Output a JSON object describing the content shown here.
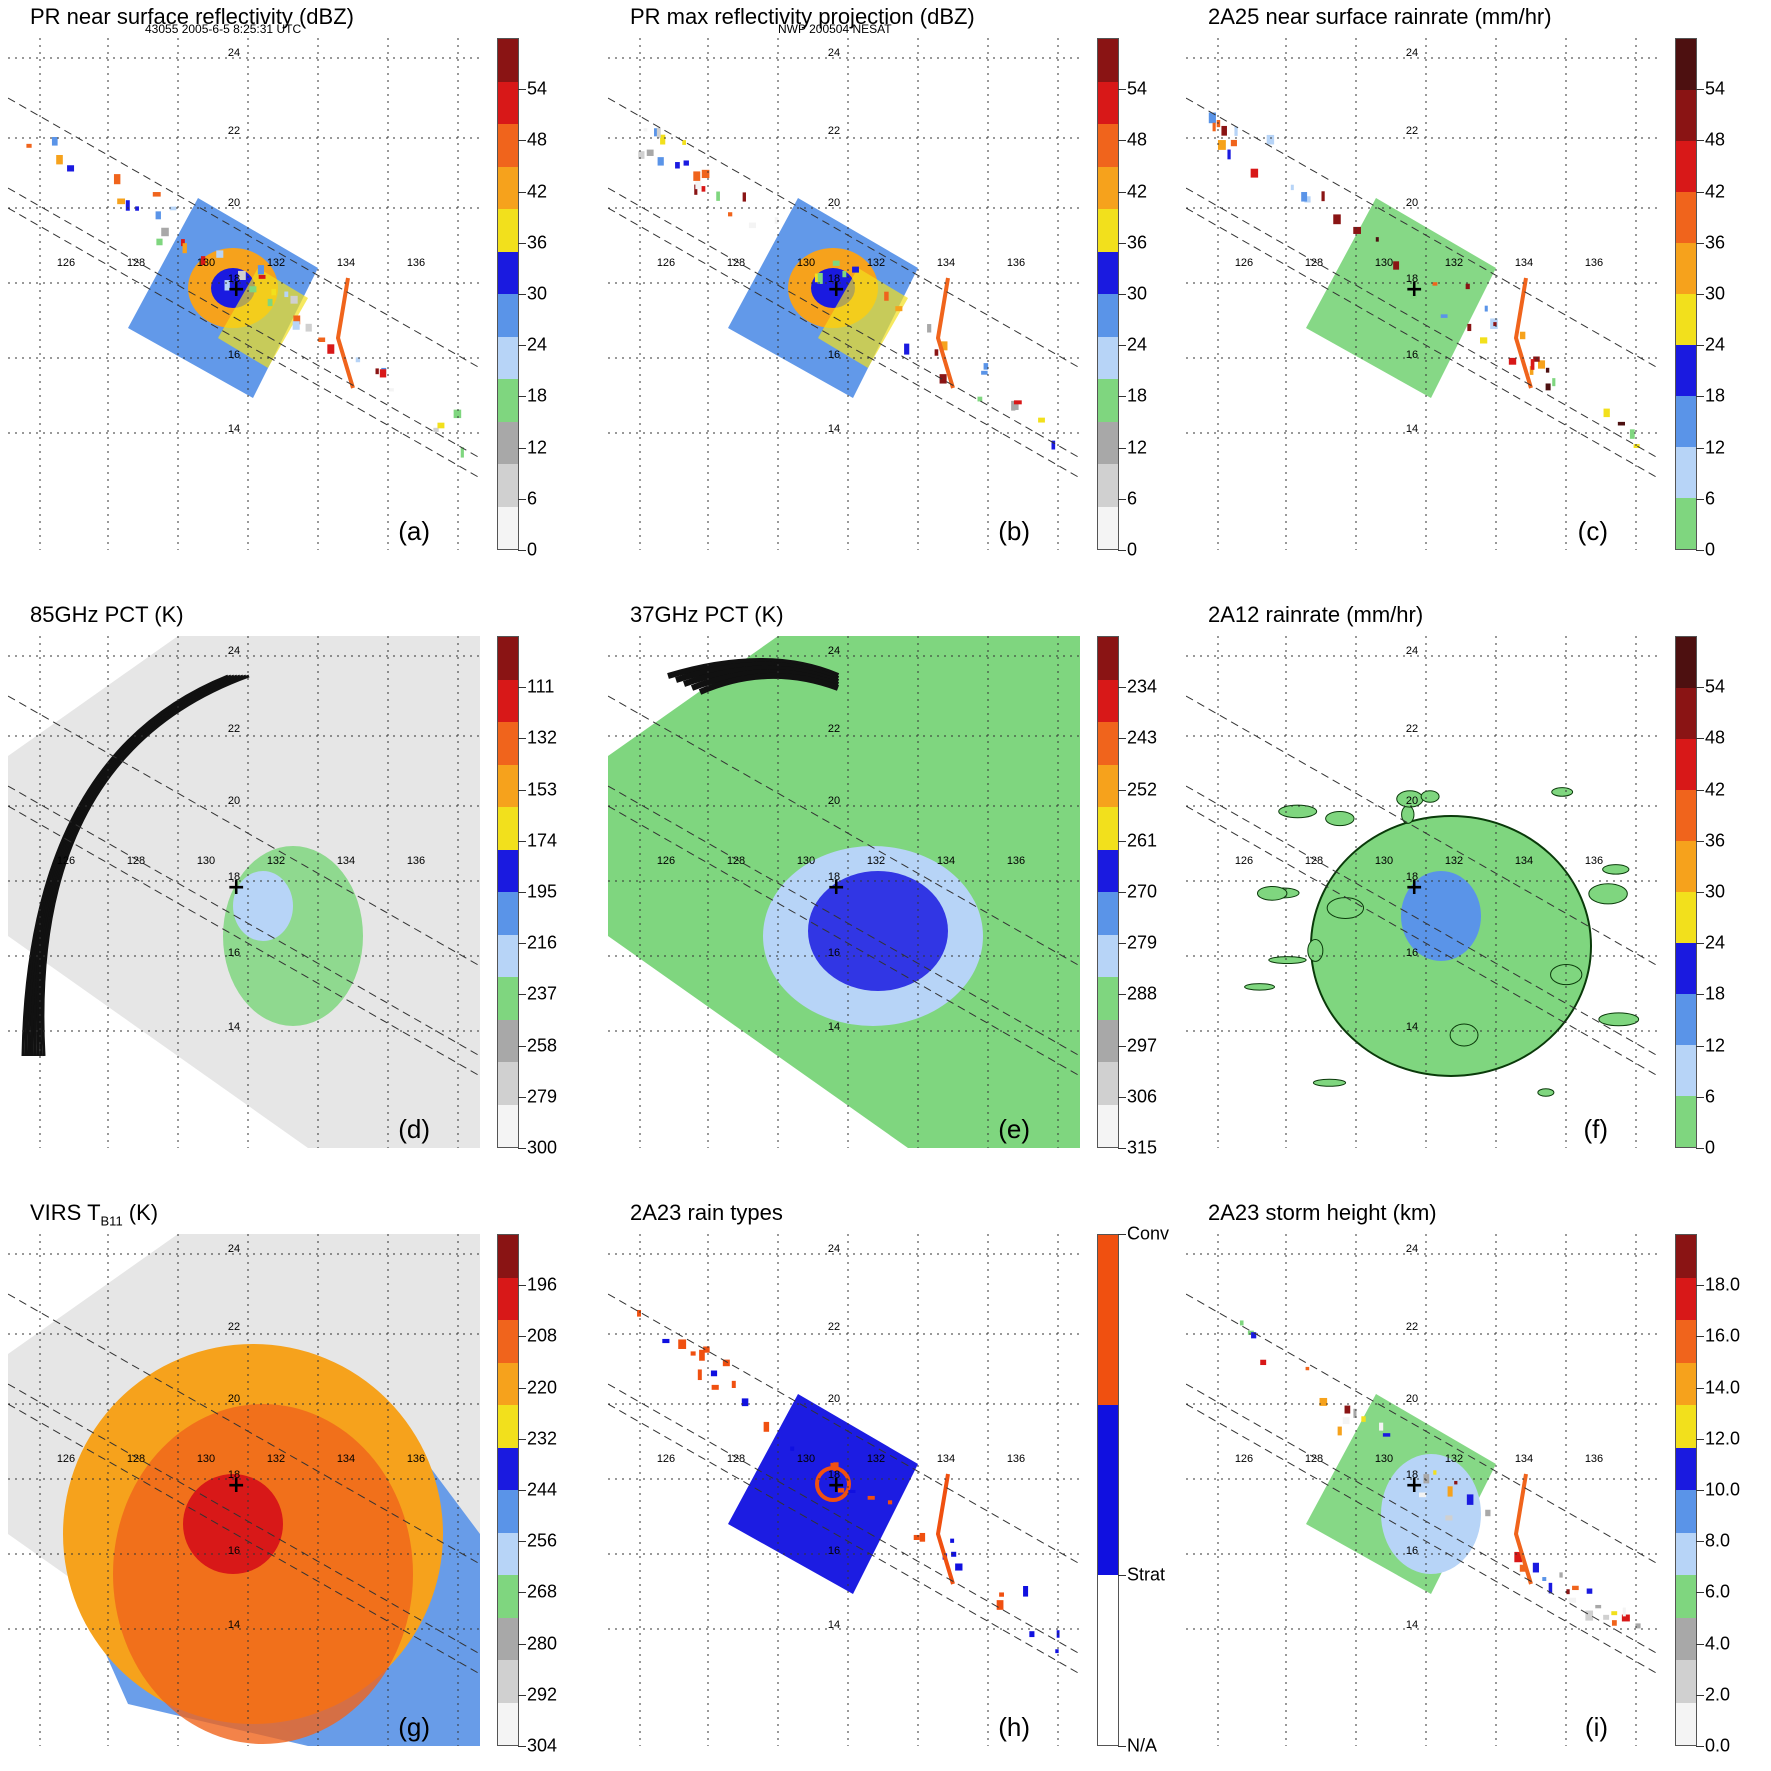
{
  "header": {
    "orbit_info": "43055 2005-6-5 8:25:31 UTC",
    "storm_info": "NWP 200504 NESAT"
  },
  "panels": [
    {
      "key": "a",
      "title": "PR near surface reflectivity (dBZ)",
      "label": "(a)",
      "field": "swath",
      "ticks": [
        "0",
        "6",
        "12",
        "18",
        "24",
        "30",
        "36",
        "42",
        "48",
        "54"
      ],
      "colors": [
        "#f4f4f4",
        "#d0d0d0",
        "#a8a8a8",
        "#7fd67f",
        "#b7d4f7",
        "#5a94e8",
        "#1a1ae0",
        "#f2e01c",
        "#f6a21c",
        "#f0641c",
        "#d81818",
        "#8a1414"
      ]
    },
    {
      "key": "b",
      "title": "PR max reflectivity projection (dBZ)",
      "label": "(b)",
      "field": "swath",
      "ticks": [
        "0",
        "6",
        "12",
        "18",
        "24",
        "30",
        "36",
        "42",
        "48",
        "54"
      ],
      "colors": [
        "#f4f4f4",
        "#d0d0d0",
        "#a8a8a8",
        "#7fd67f",
        "#b7d4f7",
        "#5a94e8",
        "#1a1ae0",
        "#f2e01c",
        "#f6a21c",
        "#f0641c",
        "#d81818",
        "#8a1414"
      ]
    },
    {
      "key": "c",
      "title": "2A25 near surface rainrate (mm/hr)",
      "label": "(c)",
      "field": "swath",
      "ticks": [
        "0",
        "6",
        "12",
        "18",
        "24",
        "30",
        "36",
        "42",
        "48",
        "54"
      ],
      "colors": [
        "#7fd67f",
        "#b7d4f7",
        "#5a94e8",
        "#1a1ae0",
        "#f2e01c",
        "#f6a21c",
        "#f0641c",
        "#d81818",
        "#8a1414",
        "#4d1010"
      ]
    },
    {
      "key": "d",
      "title": "85GHz PCT (K)",
      "label": "(d)",
      "field": "wide-gray",
      "ticks": [
        "300",
        "279",
        "258",
        "237",
        "216",
        "195",
        "174",
        "153",
        "132",
        "111"
      ],
      "colors": [
        "#f4f4f4",
        "#d0d0d0",
        "#a8a8a8",
        "#7fd67f",
        "#b7d4f7",
        "#5a94e8",
        "#1a1ae0",
        "#f2e01c",
        "#f6a21c",
        "#f0641c",
        "#d81818",
        "#8a1414"
      ]
    },
    {
      "key": "e",
      "title": "37GHz PCT (K)",
      "label": "(e)",
      "field": "wide-green",
      "ticks": [
        "315",
        "306",
        "297",
        "288",
        "279",
        "270",
        "261",
        "252",
        "243",
        "234"
      ],
      "colors": [
        "#f4f4f4",
        "#d0d0d0",
        "#a8a8a8",
        "#7fd67f",
        "#b7d4f7",
        "#5a94e8",
        "#1a1ae0",
        "#f2e01c",
        "#f6a21c",
        "#f0641c",
        "#d81818",
        "#8a1414"
      ]
    },
    {
      "key": "f",
      "title": "2A12 rainrate (mm/hr)",
      "label": "(f)",
      "field": "wide-sparse",
      "ticks": [
        "0",
        "6",
        "12",
        "18",
        "24",
        "30",
        "36",
        "42",
        "48",
        "54"
      ],
      "colors": [
        "#7fd67f",
        "#b7d4f7",
        "#5a94e8",
        "#1a1ae0",
        "#f2e01c",
        "#f6a21c",
        "#f0641c",
        "#d81818",
        "#8a1414",
        "#4d1010"
      ]
    },
    {
      "key": "g",
      "title": "VIRS T",
      "title_sub": "B11",
      "title_end": " (K)",
      "label": "(g)",
      "field": "wide-ir",
      "ticks": [
        "304",
        "292",
        "280",
        "268",
        "256",
        "244",
        "232",
        "220",
        "208",
        "196"
      ],
      "colors": [
        "#f4f4f4",
        "#d0d0d0",
        "#a8a8a8",
        "#7fd67f",
        "#b7d4f7",
        "#5a94e8",
        "#1a1ae0",
        "#f2e01c",
        "#f6a21c",
        "#f0641c",
        "#d81818",
        "#8a1414"
      ]
    },
    {
      "key": "h",
      "title": "2A23 rain types",
      "label": "(h)",
      "field": "swath",
      "ticks": [
        "N/A",
        "Strat",
        "Conv"
      ],
      "colors": [
        "#ffffff",
        "#1010e0",
        "#f05010"
      ]
    },
    {
      "key": "i",
      "title": "2A23 storm height (km)",
      "label": "(i)",
      "field": "swath",
      "ticks": [
        "0.0",
        "2.0",
        "4.0",
        "6.0",
        "8.0",
        "10.0",
        "12.0",
        "14.0",
        "16.0",
        "18.0"
      ],
      "colors": [
        "#f4f4f4",
        "#d0d0d0",
        "#a8a8a8",
        "#7fd67f",
        "#b7d4f7",
        "#5a94e8",
        "#1a1ae0",
        "#f2e01c",
        "#f6a21c",
        "#f0641c",
        "#d81818",
        "#8a1414"
      ]
    }
  ],
  "map": {
    "lon_labels": [
      "126",
      "128",
      "130",
      "132",
      "134",
      "136"
    ],
    "lat_labels": [
      "24",
      "22",
      "20",
      "18",
      "16",
      "14"
    ],
    "center_marker": "+"
  }
}
